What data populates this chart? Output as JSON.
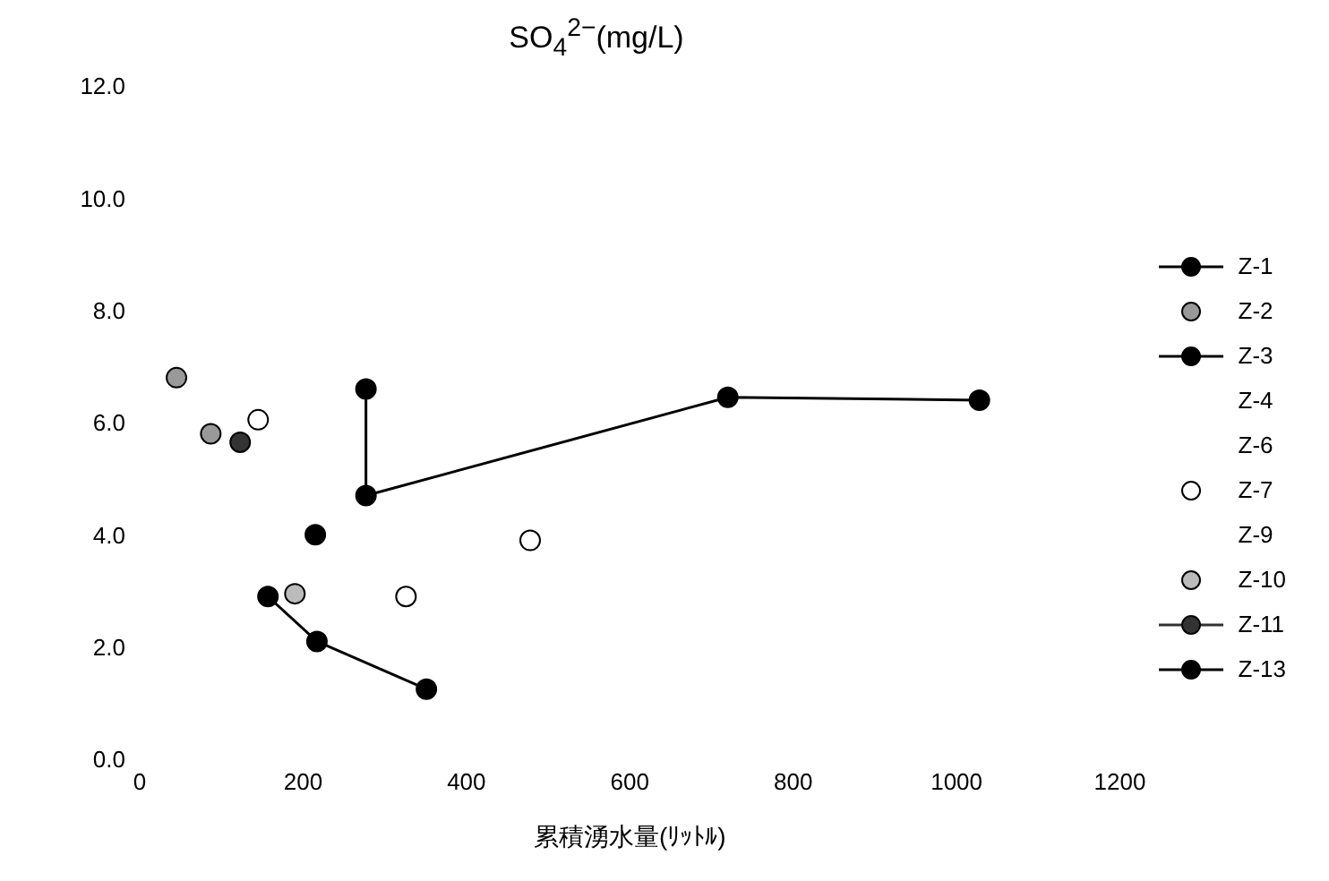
{
  "chart_data": {
    "type": "scatter",
    "title": "SO$_{4}$$^{2−}$(mg/L)",
    "xlabel": "累積湧水量(ﾘｯﾄﾙ)",
    "xlim": [
      0,
      1200
    ],
    "xticks": [
      0,
      200,
      400,
      600,
      800,
      1000,
      1200
    ],
    "ylim": [
      0,
      12
    ],
    "yticks": [
      {
        "value": 0,
        "label": "0.0"
      },
      {
        "value": 2,
        "label": "2.0"
      },
      {
        "value": 4,
        "label": "4.0"
      },
      {
        "value": 6,
        "label": "6.0"
      },
      {
        "value": 8,
        "label": "8.0"
      },
      {
        "value": 10,
        "label": "10.0"
      },
      {
        "value": 12,
        "label": "12.0"
      }
    ],
    "legend": "right",
    "marker": "circle",
    "series": [
      {
        "name": "Z-1",
        "type": "line",
        "color": "#000000",
        "x": [
          157,
          217,
          351
        ],
        "values": [
          2.9,
          2.1,
          1.25
        ]
      },
      {
        "name": "Z-2",
        "color": "#999999",
        "x": [
          45,
          87
        ],
        "values": [
          6.8,
          5.8
        ]
      },
      {
        "name": "Z-3",
        "type": "line",
        "color": "#000000",
        "x": [
          215
        ],
        "values": [
          4.0
        ]
      },
      {
        "name": "Z-4"
      },
      {
        "name": "Z-6"
      },
      {
        "name": "Z-7",
        "color": "#ffffff",
        "x": [
          145,
          326,
          478
        ],
        "values": [
          6.05,
          2.9,
          3.9
        ]
      },
      {
        "name": "Z-9"
      },
      {
        "name": "Z-10",
        "color": "#bbbbbb",
        "x": [
          190
        ],
        "values": [
          2.95
        ]
      },
      {
        "name": "Z-11",
        "type": "line",
        "color": "#333333",
        "x": [
          123
        ],
        "values": [
          5.65
        ]
      },
      {
        "name": "Z-13",
        "type": "line",
        "color": "#000000",
        "x": [
          277,
          277,
          720,
          1028
        ],
        "values": [
          6.6,
          4.7,
          6.45,
          6.4
        ]
      }
    ]
  }
}
